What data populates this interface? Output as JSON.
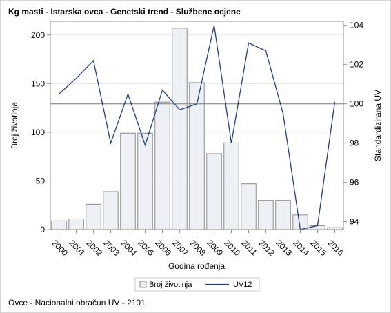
{
  "chart_data": {
    "type": "bar+line",
    "title": "Kg masti - Istarska ovca - Genetski trend - Službene ocjene",
    "xlabel": "Godina rođenja",
    "ylabel": "Broj životinja",
    "y2label": "Standardizirana UV",
    "categories": [
      "2000",
      "2001",
      "2002",
      "2003",
      "2004",
      "2005",
      "2006",
      "2007",
      "2008",
      "2009",
      "2010",
      "2011",
      "2012",
      "2013",
      "2014",
      "2015",
      "2016"
    ],
    "ylim": [
      0,
      214
    ],
    "yticks": [
      0,
      50,
      100,
      150,
      200
    ],
    "y2lim": [
      93.6,
      104.2
    ],
    "y2ticks": [
      94,
      96,
      98,
      100,
      102,
      104
    ],
    "reference_line_y2": 100,
    "series": [
      {
        "name": "Broj životinja",
        "kind": "bar",
        "axis": "left",
        "values": [
          9,
          11,
          26,
          39,
          99,
          99,
          131,
          207,
          151,
          78,
          89,
          47,
          30,
          30,
          15,
          4,
          2
        ]
      },
      {
        "name": "UV12",
        "kind": "line",
        "axis": "right",
        "values": [
          100.5,
          101.3,
          102.2,
          98.0,
          100.5,
          97.9,
          100.7,
          99.7,
          100.0,
          104.0,
          98.0,
          103.1,
          102.7,
          99.5,
          93.6,
          93.8,
          100.1
        ]
      }
    ],
    "legend": "bottom",
    "grid": true
  },
  "colors": {
    "bar_fill": "#edf0f4",
    "bar_stroke": "#8c8c8c",
    "line": "#1f3d8c",
    "reference": "#9a9a9a",
    "gridline": "#e6e6e6"
  },
  "footnote": "Ovce - Nacionalni obračun UV - 2101"
}
